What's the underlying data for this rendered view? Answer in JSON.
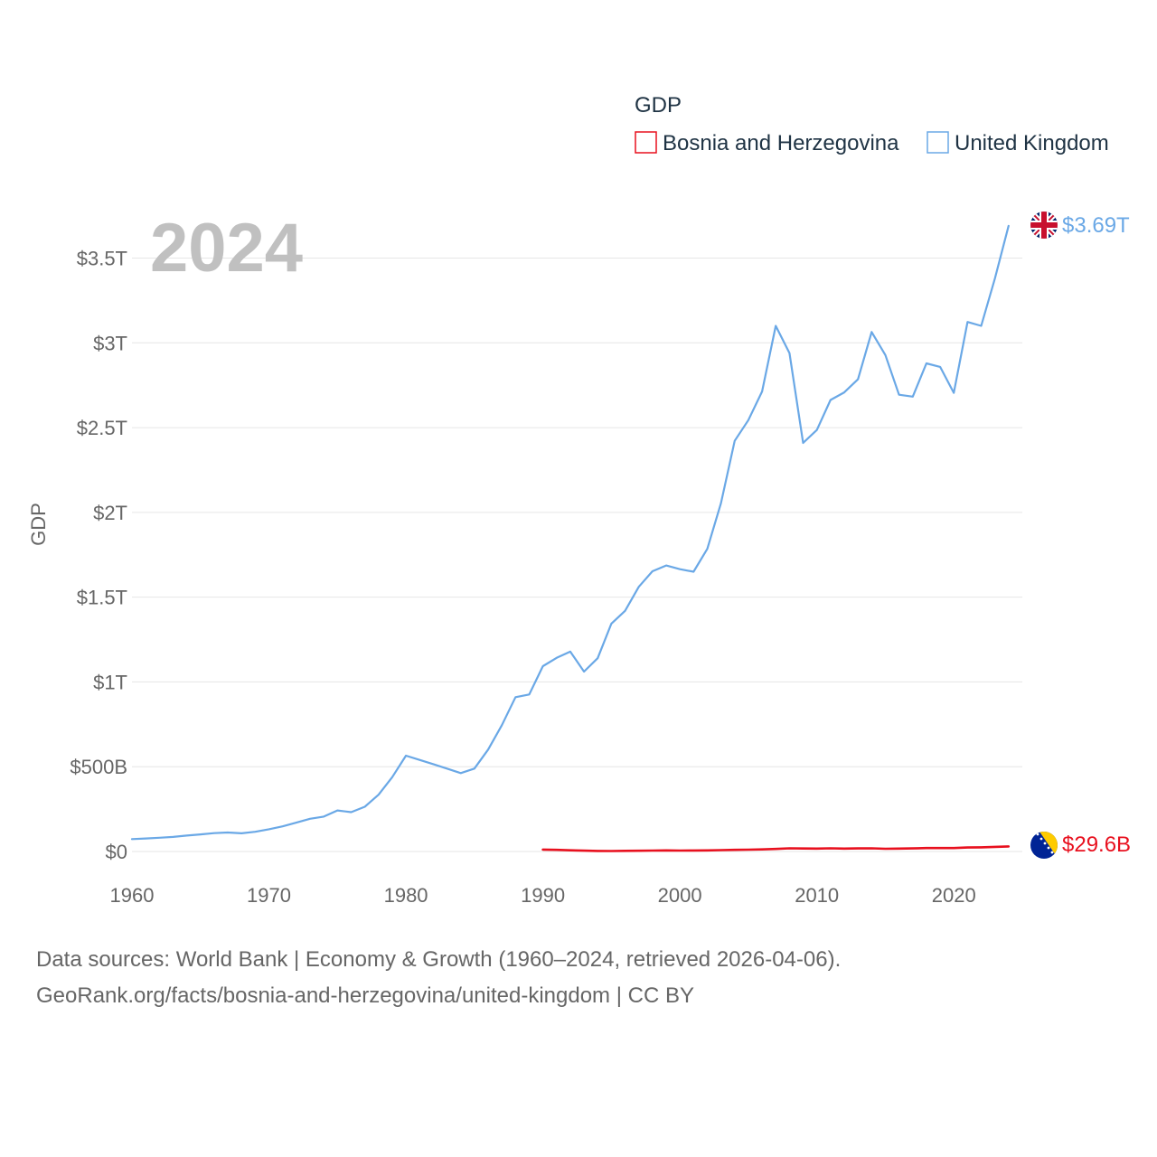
{
  "chart_data": {
    "type": "line",
    "title": "GDP",
    "ylabel": "GDP",
    "xlabel": "",
    "year_label": "2024",
    "xlim": [
      1960,
      2025
    ],
    "ylim": [
      0,
      3.7
    ],
    "x_ticks": [
      1960,
      1970,
      1980,
      1990,
      2000,
      2010,
      2020
    ],
    "x_tick_labels": [
      "1960",
      "1970",
      "1980",
      "1990",
      "2000",
      "2010",
      "2020"
    ],
    "y_ticks": [
      0,
      0.5,
      1,
      1.5,
      2,
      2.5,
      3,
      3.5
    ],
    "y_tick_labels": [
      "$0",
      "$500B",
      "$1T",
      "$1.5T",
      "$2T",
      "$2.5T",
      "$3T",
      "$3.5T"
    ],
    "y_units": "trillion USD",
    "legend_position": "top-right",
    "series": [
      {
        "name": "Bosnia and Herzegovina",
        "color": "#e8101e",
        "end_label": "$29.6B",
        "flag": "bosnia-flag-icon",
        "x": [
          1990,
          1991,
          1992,
          1993,
          1994,
          1995,
          1996,
          1997,
          1998,
          1999,
          2000,
          2001,
          2002,
          2003,
          2004,
          2005,
          2006,
          2007,
          2008,
          2009,
          2010,
          2011,
          2012,
          2013,
          2014,
          2015,
          2016,
          2017,
          2018,
          2019,
          2020,
          2021,
          2022,
          2023,
          2024
        ],
        "values": [
          0.011,
          0.0095,
          0.007,
          0.005,
          0.003,
          0.0025,
          0.0035,
          0.0045,
          0.0055,
          0.0062,
          0.0055,
          0.0056,
          0.0063,
          0.008,
          0.0097,
          0.0107,
          0.0124,
          0.0151,
          0.0189,
          0.0177,
          0.0172,
          0.0186,
          0.0172,
          0.0182,
          0.0186,
          0.0162,
          0.0169,
          0.0181,
          0.0203,
          0.0203,
          0.0201,
          0.0232,
          0.0246,
          0.0273,
          0.0296
        ]
      },
      {
        "name": "United Kingdom",
        "color": "#6aa8e6",
        "end_label": "$3.69T",
        "flag": "uk-flag-icon",
        "x": [
          1960,
          1961,
          1962,
          1963,
          1964,
          1965,
          1966,
          1967,
          1968,
          1969,
          1970,
          1971,
          1972,
          1973,
          1974,
          1975,
          1976,
          1977,
          1978,
          1979,
          1980,
          1981,
          1982,
          1983,
          1984,
          1985,
          1986,
          1987,
          1988,
          1989,
          1990,
          1991,
          1992,
          1993,
          1994,
          1995,
          1996,
          1997,
          1998,
          1999,
          2000,
          2001,
          2002,
          2003,
          2004,
          2005,
          2006,
          2007,
          2008,
          2009,
          2010,
          2011,
          2012,
          2013,
          2014,
          2015,
          2016,
          2017,
          2018,
          2019,
          2020,
          2021,
          2022,
          2023,
          2024
        ],
        "values": [
          0.073,
          0.077,
          0.081,
          0.086,
          0.094,
          0.101,
          0.108,
          0.112,
          0.107,
          0.116,
          0.131,
          0.148,
          0.17,
          0.193,
          0.206,
          0.242,
          0.232,
          0.264,
          0.335,
          0.438,
          0.565,
          0.54,
          0.515,
          0.489,
          0.462,
          0.489,
          0.601,
          0.745,
          0.91,
          0.926,
          1.093,
          1.142,
          1.179,
          1.061,
          1.14,
          1.344,
          1.419,
          1.561,
          1.653,
          1.687,
          1.665,
          1.65,
          1.785,
          2.054,
          2.422,
          2.544,
          2.713,
          3.1,
          2.94,
          2.41,
          2.486,
          2.663,
          2.708,
          2.785,
          3.064,
          2.928,
          2.694,
          2.683,
          2.879,
          2.858,
          2.705,
          3.123,
          3.1,
          3.38,
          3.69
        ]
      }
    ]
  },
  "source": {
    "line1": "Data sources: World Bank | Economy & Growth (1960–2024, retrieved 2026-04-06).",
    "line2": "GeoRank.org/facts/bosnia-and-herzegovina/united-kingdom | CC BY"
  },
  "colors": {
    "grid": "#e6e6e6",
    "tick_text": "#666666",
    "legend_text": "#1f3344",
    "year_label": "#c0c0c0"
  }
}
